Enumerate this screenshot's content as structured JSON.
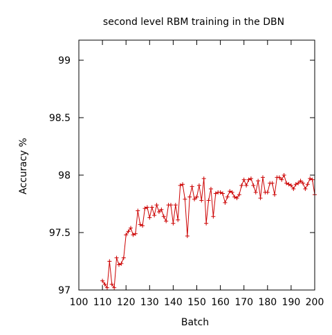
{
  "chart_data": {
    "type": "line",
    "title": "second level RBM training in the DBN",
    "xlabel": "Batch",
    "ylabel": "Accuracy %",
    "xlim": [
      100,
      200
    ],
    "ylim": [
      97,
      99.2
    ],
    "x_ticks": [
      100,
      110,
      120,
      130,
      140,
      150,
      160,
      170,
      180,
      190,
      200
    ],
    "y_ticks": [
      97,
      97.5,
      98,
      98.5,
      99
    ],
    "x_tick_labels": [
      "100",
      "110",
      "120",
      "130",
      "140",
      "150",
      "160",
      "170",
      "180",
      "190",
      "200"
    ],
    "y_tick_labels": [
      "97",
      "97.5",
      "98",
      "98.5",
      "99"
    ],
    "grid": false,
    "legend": "none",
    "series": [
      {
        "color": "#cc0000",
        "marker": "plus",
        "x": [
          110,
          111,
          112,
          113,
          114,
          115,
          116,
          117,
          118,
          119,
          120,
          121,
          122,
          123,
          124,
          125,
          126,
          127,
          128,
          129,
          130,
          131,
          132,
          133,
          134,
          135,
          136,
          137,
          138,
          139,
          140,
          141,
          142,
          143,
          144,
          145,
          146,
          147,
          148,
          149,
          150,
          151,
          152,
          153,
          154,
          155,
          156,
          157,
          158,
          159,
          160,
          161,
          162,
          163,
          164,
          165,
          166,
          167,
          168,
          169,
          170,
          171,
          172,
          173,
          174,
          175,
          176,
          177,
          178,
          179,
          180,
          181,
          182,
          183,
          184,
          185,
          186,
          187,
          188,
          189,
          190,
          191,
          192,
          193,
          194,
          195,
          196,
          197,
          198,
          199,
          200
        ],
        "y": [
          97.08,
          97.05,
          97.02,
          97.25,
          97.05,
          97.02,
          97.28,
          97.22,
          97.23,
          97.28,
          97.48,
          97.51,
          97.54,
          97.48,
          97.49,
          97.69,
          97.57,
          97.56,
          97.71,
          97.72,
          97.63,
          97.72,
          97.65,
          97.74,
          97.68,
          97.7,
          97.64,
          97.6,
          97.74,
          97.74,
          97.58,
          97.74,
          97.61,
          97.91,
          97.92,
          97.79,
          97.47,
          97.81,
          97.9,
          97.79,
          97.81,
          97.91,
          97.78,
          97.97,
          97.58,
          97.78,
          97.88,
          97.64,
          97.84,
          97.85,
          97.85,
          97.84,
          97.76,
          97.81,
          97.86,
          97.85,
          97.81,
          97.8,
          97.83,
          97.91,
          97.96,
          97.91,
          97.96,
          97.97,
          97.91,
          97.85,
          97.95,
          97.8,
          97.98,
          97.85,
          97.85,
          97.93,
          97.93,
          97.83,
          97.98,
          97.98,
          97.96,
          98.0,
          97.93,
          97.92,
          97.91,
          97.88,
          97.92,
          97.93,
          97.95,
          97.93,
          97.88,
          97.92,
          97.97,
          97.96,
          97.83
        ]
      }
    ]
  }
}
